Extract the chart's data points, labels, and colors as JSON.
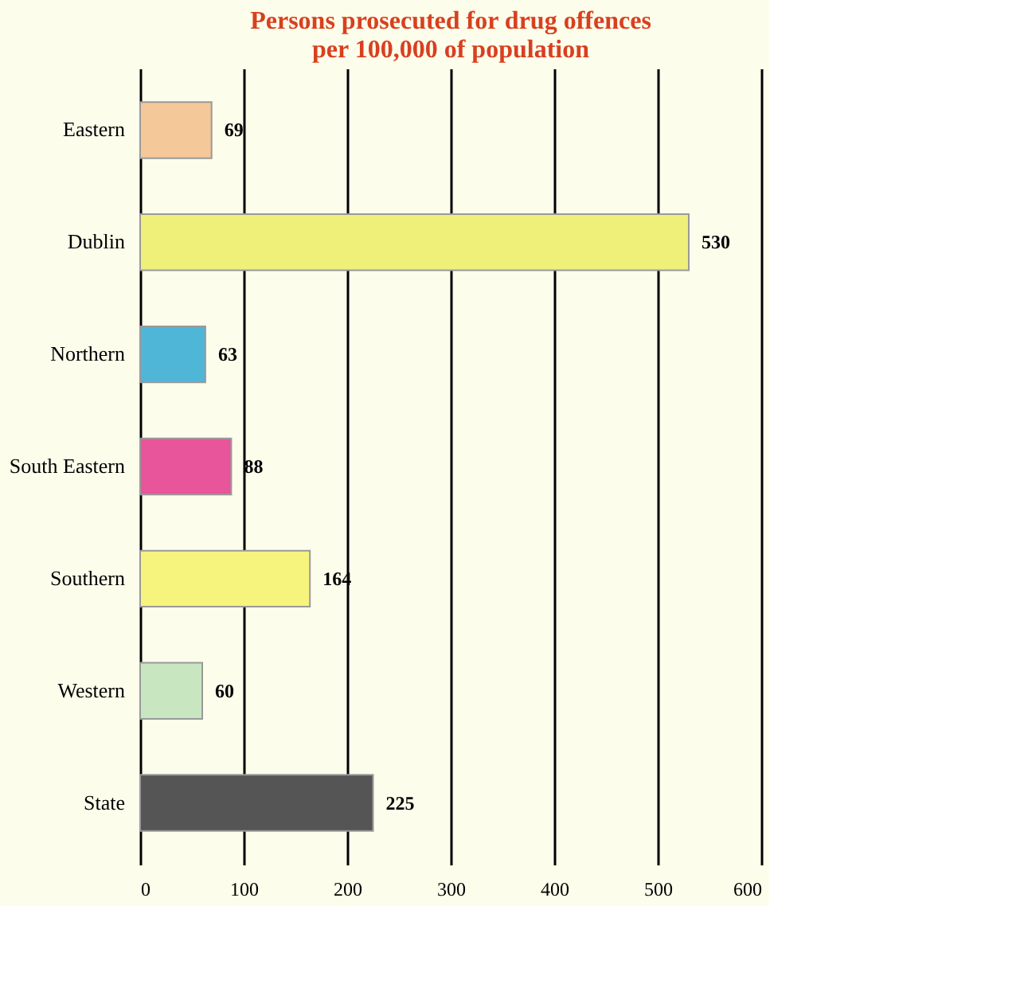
{
  "chart_data": {
    "type": "bar",
    "orientation": "horizontal",
    "title": "Persons prosecuted for drug offences\nper 100,000 of population",
    "categories": [
      "Eastern",
      "Dublin",
      "Northern",
      "South Eastern",
      "Southern",
      "Western",
      "State"
    ],
    "values": [
      69,
      530,
      63,
      88,
      164,
      60,
      225
    ],
    "colors": [
      "#f5c89a",
      "#eef07a",
      "#4fb6d8",
      "#e8559a",
      "#f7f47e",
      "#c8e6c0",
      "#555555"
    ],
    "xlim": [
      0,
      600
    ],
    "xticks": [
      0,
      100,
      200,
      300,
      400,
      500,
      600
    ],
    "grid": "x",
    "data_labels": true
  }
}
